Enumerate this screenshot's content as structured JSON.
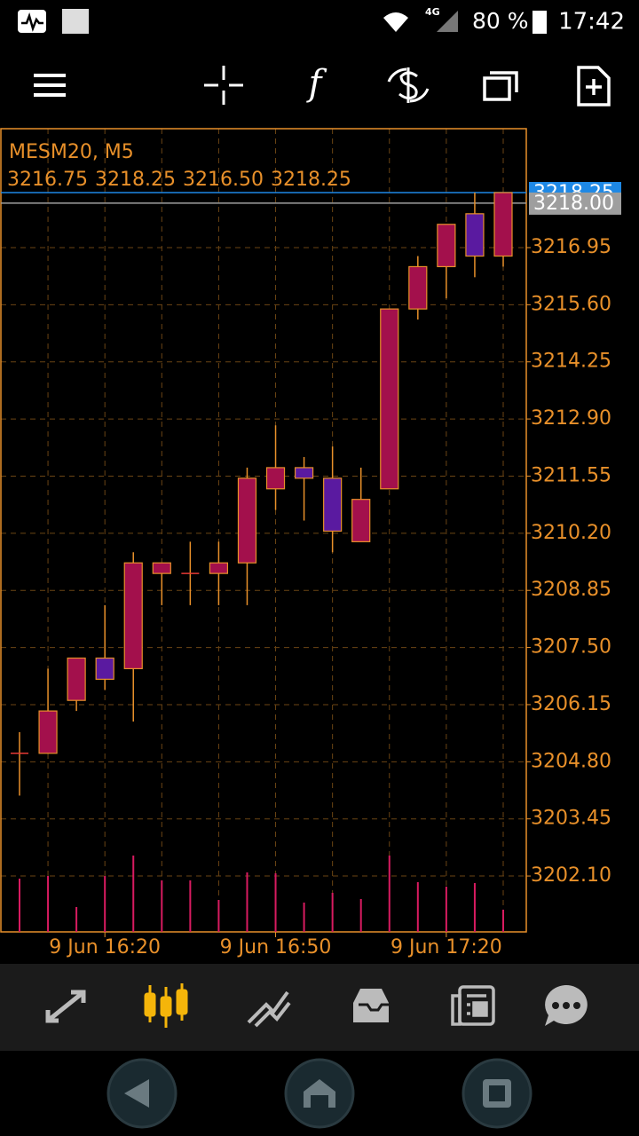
{
  "status_bar": {
    "network": "4G",
    "battery": "80 %",
    "time": "17:42"
  },
  "chart_data": {
    "type": "candlestick",
    "title": "MESM20, M5",
    "ohlc": [
      "3216.75",
      "3218.25",
      "3216.50",
      "3218.25"
    ],
    "categories": [
      null,
      null,
      null,
      "9 Jun 16:20",
      null,
      null,
      null,
      null,
      null,
      "9 Jun 16:50",
      null,
      null,
      null,
      null,
      null,
      "9 Jun 17:20",
      null,
      null
    ],
    "open": [
      3205.0,
      3205.0,
      3206.25,
      3207.25,
      3207.0,
      3209.25,
      3209.25,
      3209.25,
      3209.5,
      3211.25,
      3211.75,
      3211.5,
      3210.0,
      3211.25,
      3215.5,
      3216.5,
      3217.75,
      3216.75
    ],
    "high": [
      3205.5,
      3207.0,
      3207.25,
      3208.5,
      3209.75,
      3209.5,
      3210.0,
      3210.0,
      3211.75,
      3212.75,
      3212.0,
      3212.25,
      3211.75,
      3215.5,
      3216.75,
      3217.5,
      3218.25,
      3218.25
    ],
    "low": [
      3204.0,
      3205.0,
      3206.0,
      3206.5,
      3205.75,
      3208.5,
      3208.5,
      3208.5,
      3208.5,
      3210.75,
      3210.5,
      3209.75,
      3210.0,
      3211.25,
      3215.25,
      3215.75,
      3216.25,
      3216.5
    ],
    "close": [
      3205.0,
      3206.0,
      3207.25,
      3206.75,
      3209.5,
      3209.5,
      3209.25,
      3209.5,
      3211.5,
      3211.75,
      3211.5,
      3210.25,
      3211.0,
      3215.5,
      3216.5,
      3217.5,
      3216.75,
      3218.25
    ],
    "volume": [
      60,
      63,
      28,
      63,
      86,
      58,
      58,
      36,
      67,
      66,
      33,
      44,
      37,
      86,
      56,
      51,
      55,
      25
    ],
    "bull_color": "#a3104c",
    "bear_color": "#5a1aa0",
    "edge_color": "#e8902a",
    "volume_color": "#d81b60",
    "ylim": [
      3200.78,
      3219.76
    ],
    "yticks": [
      3216.95,
      {
        "value": 3215.6,
        "label": "3215.60"
      },
      3214.25,
      {
        "value": 3212.9,
        "label": "3212.90"
      },
      3211.55,
      {
        "value": 3210.2,
        "label": "3210.20"
      },
      3208.85,
      {
        "value": 3207.5,
        "label": "3207.50"
      },
      3206.15,
      {
        "value": 3204.8,
        "label": "3204.80"
      },
      3203.45,
      {
        "value": 3202.1,
        "label": "3202.10"
      }
    ],
    "grid": true,
    "price_lines": [
      3218.25,
      {
        "value": 3218,
        "label": "3218.00"
      }
    ],
    "price_line_colors": [
      "#1e88e5",
      "#9e9e9e"
    ]
  }
}
